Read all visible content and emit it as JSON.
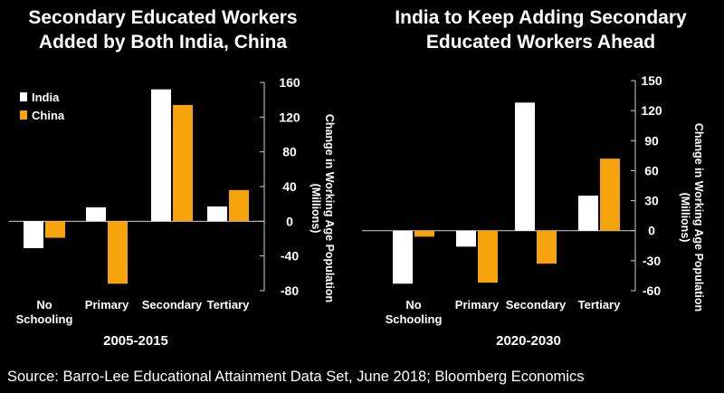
{
  "left_title": "Secondary Educated Workers\nAdded by Both India, China",
  "right_title": "India to Keep Adding Secondary\nEducated Workers Ahead",
  "source": "Source: Barro-Lee Educational Attainment Data Set, June 2018; Bloomberg Economics",
  "colors": {
    "india": "#ffffff",
    "china": "#f7a30b",
    "background": "#000000"
  },
  "chart_data": [
    {
      "type": "bar",
      "title": "Secondary Educated Workers Added by Both India, China",
      "xlabel": "2005-2015",
      "ylabel": "Change in Working Age Population (Millions)",
      "categories": [
        "No Schooling",
        "Primary",
        "Secondary",
        "Tertiary"
      ],
      "series": [
        {
          "name": "India",
          "values": [
            -31,
            16,
            152,
            17
          ]
        },
        {
          "name": "China",
          "values": [
            -19,
            -72,
            134,
            36
          ]
        }
      ],
      "ylim": [
        -80,
        160
      ],
      "yticks": [
        -80,
        -40,
        0,
        40,
        80,
        120,
        160
      ],
      "legend": "top-left",
      "grid": false
    },
    {
      "type": "bar",
      "title": "India to Keep Adding Secondary Educated Workers Ahead",
      "xlabel": "2020-2030",
      "ylabel": "Change in Working Age Population (Millions)",
      "categories": [
        "No Schooling",
        "Primary",
        "Secondary",
        "Tertiary"
      ],
      "series": [
        {
          "name": "India",
          "values": [
            -53,
            -16,
            128,
            35
          ]
        },
        {
          "name": "China",
          "values": [
            -6,
            -52,
            -33,
            72
          ]
        }
      ],
      "ylim": [
        -60,
        150
      ],
      "yticks": [
        -60,
        -30,
        0,
        30,
        60,
        90,
        120,
        150
      ],
      "legend": "none",
      "grid": false
    }
  ]
}
